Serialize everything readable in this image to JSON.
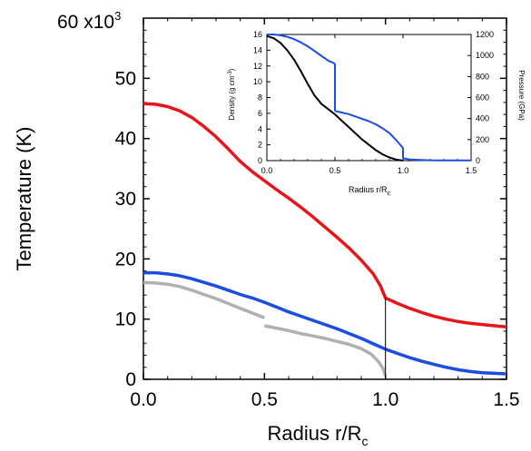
{
  "chart_data": [
    {
      "type": "line",
      "title": "",
      "xlabel": "Radius r/R",
      "xlabel_sub": "c",
      "ylabel": "Temperature (K)",
      "y_multiplier": "60 x10",
      "y_multiplier_exp": "3",
      "xlim": [
        0.0,
        1.5
      ],
      "ylim": [
        0,
        60
      ],
      "x_ticks": [
        0.0,
        0.5,
        1.0,
        1.5
      ],
      "x_tick_labels": [
        "0.0",
        "0.5",
        "1.0",
        "1.5"
      ],
      "y_ticks": [
        0,
        10,
        20,
        30,
        40,
        50
      ],
      "y_tick_labels": [
        "0",
        "10",
        "20",
        "30",
        "40",
        "50"
      ],
      "grid": false,
      "colors": {
        "red": "#e8141c",
        "blue": "#1a4de0",
        "gray": "#b0b0b0",
        "black": "#000000"
      },
      "vertical_marker_x": 1.0,
      "series": [
        {
          "color": "#e8141c",
          "segments": [
            {
              "x": [
                0.0,
                0.05,
                0.1,
                0.15,
                0.2,
                0.25,
                0.3,
                0.35,
                0.4,
                0.45,
                0.5,
                0.55,
                0.6,
                0.65,
                0.7,
                0.75,
                0.8,
                0.85,
                0.9,
                0.95,
                0.98,
                1.0,
                1.05,
                1.1,
                1.15,
                1.2,
                1.25,
                1.3,
                1.35,
                1.4,
                1.45,
                1.5
              ],
              "y": [
                45.8,
                45.7,
                45.3,
                44.6,
                43.5,
                42.0,
                40.3,
                38.3,
                36.2,
                34.5,
                33.0,
                31.5,
                30.1,
                28.6,
                27.0,
                25.3,
                23.6,
                21.8,
                19.8,
                17.5,
                15.5,
                13.5,
                12.6,
                11.8,
                11.1,
                10.5,
                10.0,
                9.6,
                9.3,
                9.1,
                8.9,
                8.7
              ]
            }
          ]
        },
        {
          "color": "#1a4de0",
          "segments": [
            {
              "x": [
                0.0,
                0.05,
                0.1,
                0.15,
                0.2,
                0.25,
                0.3,
                0.35,
                0.4,
                0.45,
                0.5,
                0.55,
                0.6,
                0.65,
                0.7,
                0.75,
                0.8,
                0.85,
                0.9,
                0.95,
                1.0,
                1.05,
                1.1,
                1.15,
                1.2,
                1.25,
                1.3,
                1.35,
                1.4,
                1.45,
                1.5
              ],
              "y": [
                17.7,
                17.7,
                17.5,
                17.2,
                16.7,
                16.1,
                15.5,
                14.8,
                14.1,
                13.5,
                12.8,
                12.0,
                11.2,
                10.5,
                9.8,
                9.1,
                8.4,
                7.6,
                6.8,
                5.9,
                5.0,
                4.3,
                3.6,
                3.0,
                2.5,
                2.0,
                1.6,
                1.3,
                1.1,
                1.0,
                0.9
              ]
            }
          ]
        },
        {
          "color": "#b0b0b0",
          "segments": [
            {
              "x": [
                0.0,
                0.05,
                0.1,
                0.15,
                0.2,
                0.25,
                0.3,
                0.35,
                0.4,
                0.45,
                0.5
              ],
              "y": [
                16.1,
                16.0,
                15.8,
                15.4,
                14.8,
                14.1,
                13.4,
                12.6,
                11.8,
                11.0,
                10.2
              ]
            },
            {
              "x": [
                0.5,
                0.55,
                0.6,
                0.65,
                0.7,
                0.75,
                0.8,
                0.85,
                0.9,
                0.94,
                0.97,
                0.99,
                1.0
              ],
              "y": [
                8.9,
                8.5,
                8.1,
                7.6,
                7.2,
                6.8,
                6.3,
                5.8,
                5.1,
                4.2,
                3.0,
                1.8,
                0.5
              ]
            }
          ]
        }
      ]
    },
    {
      "type": "line",
      "title": "",
      "xlabel": "Radius r/R",
      "xlabel_sub": "c",
      "ylabel": "Density (g cm",
      "ylabel_sup": "-3",
      "ylabel_close": ")",
      "y2label": "Pressure (GPa)",
      "xlim": [
        0.0,
        1.5
      ],
      "ylim": [
        0,
        16
      ],
      "y2lim": [
        0,
        1200
      ],
      "x_ticks": [
        0.0,
        0.5,
        1.0,
        1.5
      ],
      "x_tick_labels": [
        "0.0",
        "0.5",
        "1.0",
        "1.5"
      ],
      "y_ticks": [
        0,
        2,
        4,
        6,
        8,
        10,
        12,
        14,
        16
      ],
      "y_tick_labels": [
        "0",
        "2",
        "4",
        "6",
        "8",
        "10",
        "12",
        "14",
        "16"
      ],
      "y2_ticks": [
        0,
        200,
        400,
        600,
        800,
        1000,
        1200
      ],
      "y2_tick_labels": [
        "0",
        "200",
        "400",
        "600",
        "800",
        "1000",
        "1200"
      ],
      "grid": false,
      "series": [
        {
          "color": "#000000",
          "axis": "y2",
          "segments": [
            {
              "x": [
                0.0,
                0.05,
                0.1,
                0.15,
                0.2,
                0.25,
                0.3,
                0.35,
                0.4,
                0.45,
                0.5,
                0.55,
                0.6,
                0.65,
                0.7,
                0.75,
                0.8,
                0.85,
                0.9,
                0.95,
                1.0
              ],
              "y": [
                1185,
                1165,
                1120,
                1050,
                960,
                850,
                730,
                620,
                540,
                490,
                440,
                380,
                320,
                260,
                200,
                150,
                100,
                60,
                30,
                10,
                0
              ]
            }
          ]
        },
        {
          "color": "#1a4de0",
          "axis": "y",
          "segments": [
            {
              "x": [
                0.0,
                0.05,
                0.1,
                0.15,
                0.2,
                0.25,
                0.3,
                0.35,
                0.4,
                0.45,
                0.5
              ],
              "y": [
                16.0,
                16.0,
                15.9,
                15.7,
                15.4,
                15.0,
                14.5,
                13.9,
                13.3,
                12.7,
                12.3
              ]
            },
            {
              "x": [
                0.5,
                0.5
              ],
              "y": [
                12.3,
                6.3
              ]
            },
            {
              "x": [
                0.5,
                0.55,
                0.6,
                0.65,
                0.7,
                0.75,
                0.8,
                0.85,
                0.9,
                0.95,
                1.0
              ],
              "y": [
                6.3,
                6.1,
                5.9,
                5.6,
                5.3,
                5.0,
                4.6,
                4.1,
                3.5,
                2.6,
                1.6
              ]
            },
            {
              "x": [
                1.0,
                1.0
              ],
              "y": [
                1.6,
                0.3
              ]
            },
            {
              "x": [
                1.0,
                1.05,
                1.1,
                1.2,
                1.3,
                1.4,
                1.5
              ],
              "y": [
                0.3,
                0.15,
                0.1,
                0.05,
                0.03,
                0.02,
                0.02
              ]
            }
          ]
        }
      ]
    }
  ]
}
